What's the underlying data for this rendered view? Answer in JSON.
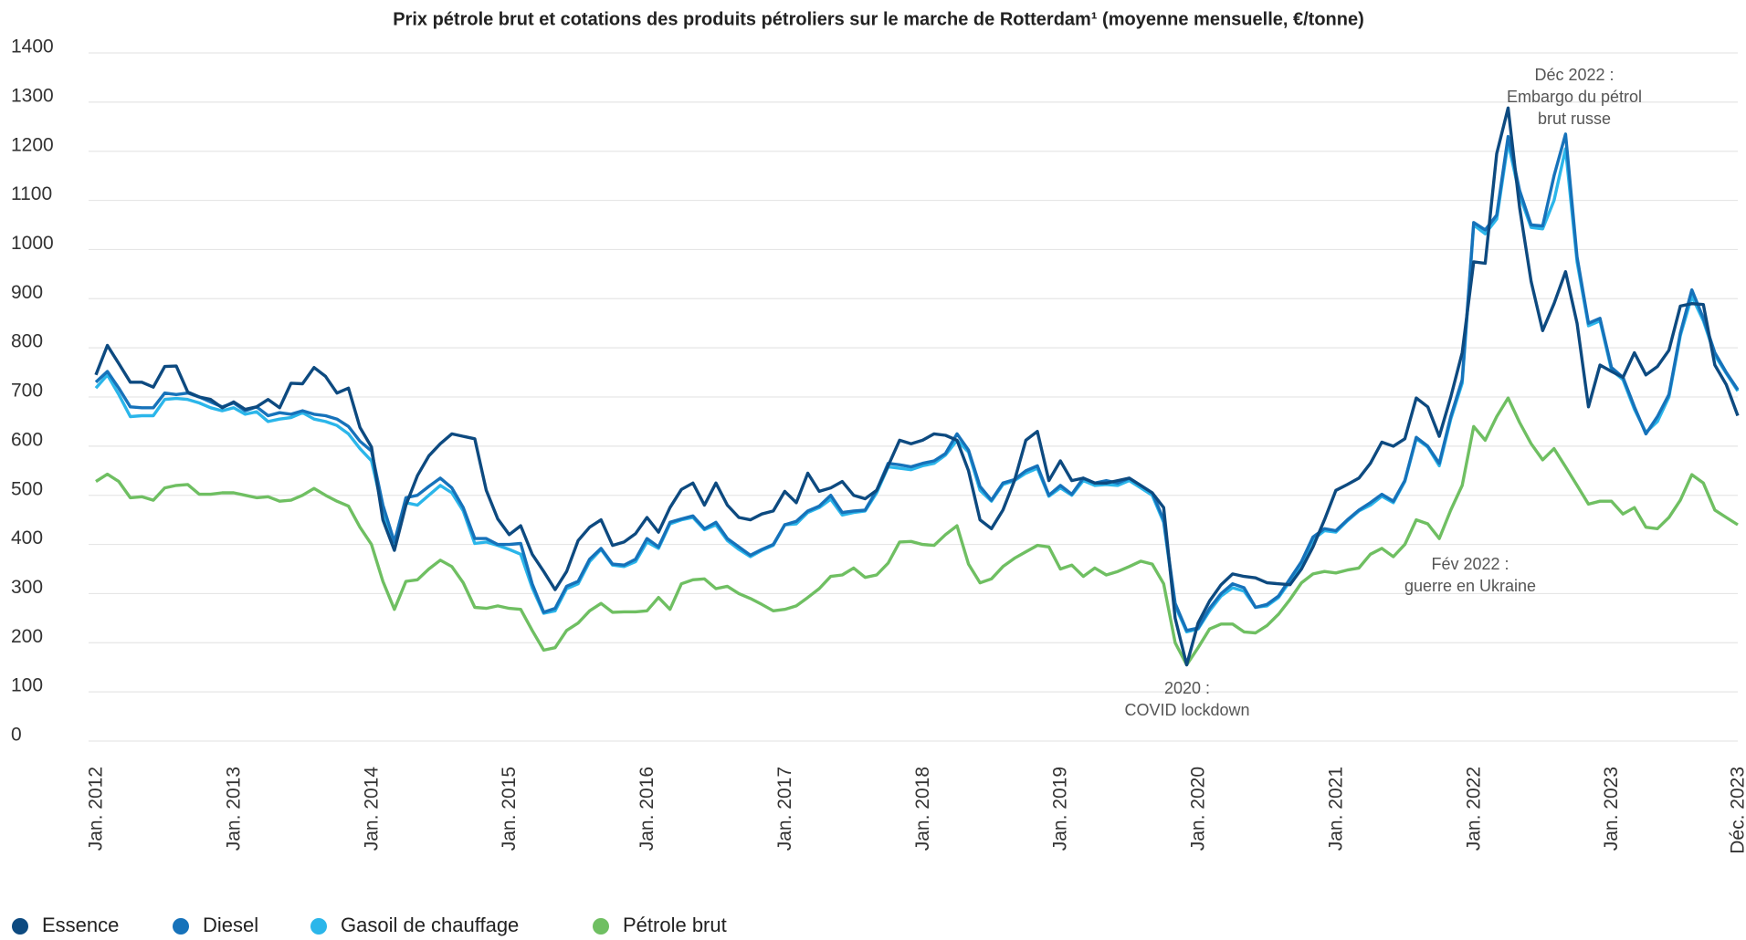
{
  "chart_data": {
    "type": "line",
    "title": "Prix pétrole brut et cotations des produits pétroliers sur le marche de Rotterdam¹ (moyenne mensuelle, €/tonne)",
    "categories": [
      "Jan. 2012",
      null,
      null,
      null,
      null,
      null,
      null,
      null,
      null,
      null,
      null,
      null,
      "Jan. 2013",
      null,
      null,
      null,
      null,
      null,
      null,
      null,
      null,
      null,
      null,
      null,
      "Jan. 2014",
      null,
      null,
      null,
      null,
      null,
      null,
      null,
      null,
      null,
      null,
      null,
      "Jan. 2015",
      null,
      null,
      null,
      null,
      null,
      null,
      null,
      null,
      null,
      null,
      null,
      "Jan. 2016",
      null,
      null,
      null,
      null,
      null,
      null,
      null,
      null,
      null,
      null,
      null,
      "Jan. 2017",
      null,
      null,
      null,
      null,
      null,
      null,
      null,
      null,
      null,
      null,
      null,
      "Jan. 2018",
      null,
      null,
      null,
      null,
      null,
      null,
      null,
      null,
      null,
      null,
      null,
      "Jan. 2019",
      null,
      null,
      null,
      null,
      null,
      null,
      null,
      null,
      null,
      null,
      null,
      "Jan. 2020",
      null,
      null,
      null,
      null,
      null,
      null,
      null,
      null,
      null,
      null,
      null,
      "Jan. 2021",
      null,
      null,
      null,
      null,
      null,
      null,
      null,
      null,
      null,
      null,
      null,
      "Jan. 2022",
      null,
      null,
      null,
      null,
      null,
      null,
      null,
      null,
      null,
      null,
      null,
      "Jan. 2023",
      null,
      null,
      null,
      null,
      null,
      null,
      null,
      null,
      null,
      null,
      "Déc. 2023"
    ],
    "series": [
      {
        "name": "Essence",
        "color": "#0d4a80",
        "values": [
          745,
          805,
          768,
          730,
          730,
          720,
          762,
          763,
          710,
          700,
          695,
          678,
          690,
          675,
          680,
          695,
          678,
          728,
          727,
          760,
          742,
          708,
          718,
          638,
          598,
          450,
          388,
          480,
          540,
          580,
          605,
          625,
          620,
          615,
          510,
          452,
          420,
          438,
          380,
          345,
          308,
          345,
          408,
          435,
          450,
          398,
          405,
          422,
          455,
          425,
          475,
          512,
          525,
          480,
          525,
          480,
          455,
          450,
          462,
          468,
          508,
          485,
          545,
          508,
          515,
          528,
          500,
          493,
          510,
          560,
          612,
          605,
          612,
          625,
          622,
          612,
          550,
          450,
          432,
          470,
          530,
          612,
          630,
          530,
          570,
          530,
          535,
          525,
          525,
          530,
          535,
          520,
          505,
          475,
          250,
          155,
          240,
          285,
          318,
          340,
          335,
          332,
          322,
          320,
          318,
          350,
          395,
          450,
          510,
          522,
          535,
          565,
          608,
          600,
          615,
          698,
          680,
          620,
          700,
          790,
          975,
          972,
          1195,
          1288,
          1085,
          935,
          835,
          890,
          955,
          850,
          680,
          765,
          752,
          740,
          790,
          745,
          762,
          795,
          885,
          890,
          888,
          765,
          725,
          662
        ]
      },
      {
        "name": "Diesel",
        "color": "#1672ba",
        "values": [
          730,
          752,
          718,
          680,
          678,
          678,
          708,
          705,
          708,
          700,
          690,
          680,
          688,
          672,
          680,
          662,
          668,
          665,
          672,
          665,
          662,
          655,
          640,
          610,
          590,
          480,
          405,
          495,
          500,
          518,
          535,
          515,
          475,
          412,
          412,
          400,
          400,
          402,
          320,
          262,
          270,
          315,
          325,
          370,
          392,
          360,
          358,
          370,
          412,
          395,
          445,
          452,
          458,
          432,
          445,
          412,
          395,
          378,
          390,
          400,
          440,
          447,
          468,
          478,
          500,
          465,
          468,
          470,
          510,
          565,
          562,
          558,
          565,
          570,
          585,
          625,
          592,
          518,
          490,
          525,
          532,
          550,
          560,
          500,
          520,
          502,
          535,
          525,
          530,
          525,
          535,
          520,
          505,
          450,
          280,
          225,
          230,
          270,
          300,
          320,
          312,
          272,
          278,
          295,
          330,
          365,
          415,
          432,
          428,
          450,
          470,
          485,
          502,
          488,
          530,
          618,
          600,
          565,
          660,
          735,
          1055,
          1040,
          1070,
          1230,
          1120,
          1050,
          1048,
          1150,
          1235,
          985,
          850,
          860,
          760,
          740,
          680,
          625,
          660,
          705,
          830,
          918,
          860,
          790,
          750,
          715
        ]
      },
      {
        "name": "Gasoil de chauffage",
        "color": "#2bb6ea",
        "values": [
          718,
          745,
          705,
          660,
          662,
          662,
          695,
          697,
          695,
          688,
          678,
          672,
          678,
          665,
          670,
          650,
          655,
          658,
          668,
          655,
          650,
          642,
          625,
          595,
          570,
          470,
          395,
          485,
          480,
          500,
          520,
          505,
          468,
          402,
          405,
          398,
          390,
          380,
          312,
          260,
          265,
          310,
          320,
          365,
          390,
          358,
          355,
          365,
          405,
          392,
          442,
          450,
          455,
          430,
          440,
          408,
          390,
          375,
          388,
          398,
          440,
          442,
          465,
          475,
          492,
          460,
          465,
          468,
          505,
          558,
          555,
          552,
          560,
          565,
          582,
          612,
          588,
          510,
          488,
          522,
          530,
          545,
          555,
          498,
          515,
          500,
          530,
          520,
          522,
          520,
          530,
          515,
          500,
          445,
          275,
          222,
          228,
          265,
          295,
          312,
          305,
          272,
          275,
          292,
          325,
          360,
          410,
          428,
          425,
          448,
          468,
          480,
          498,
          485,
          528,
          615,
          598,
          560,
          655,
          728,
          1050,
          1032,
          1062,
          1218,
          1110,
          1045,
          1042,
          1100,
          1205,
          975,
          845,
          855,
          755,
          735,
          675,
          628,
          650,
          700,
          825,
          905,
          855,
          785,
          748,
          712
        ]
      },
      {
        "name": "Pétrole brut",
        "color": "#6fbf62",
        "values": [
          528,
          543,
          528,
          495,
          497,
          490,
          515,
          520,
          522,
          502,
          502,
          505,
          505,
          500,
          495,
          497,
          488,
          490,
          500,
          514,
          500,
          488,
          478,
          435,
          400,
          325,
          268,
          325,
          328,
          350,
          368,
          355,
          322,
          272,
          270,
          275,
          270,
          268,
          225,
          185,
          190,
          225,
          240,
          265,
          280,
          262,
          263,
          263,
          265,
          292,
          268,
          320,
          328,
          330,
          310,
          315,
          300,
          290,
          278,
          265,
          268,
          275,
          292,
          310,
          335,
          338,
          352,
          333,
          338,
          362,
          405,
          406,
          400,
          398,
          420,
          438,
          360,
          322,
          330,
          355,
          372,
          385,
          398,
          395,
          350,
          358,
          335,
          352,
          338,
          345,
          355,
          366,
          360,
          320,
          200,
          155,
          190,
          228,
          238,
          238,
          222,
          220,
          235,
          258,
          288,
          322,
          340,
          345,
          342,
          348,
          352,
          380,
          392,
          375,
          400,
          450,
          442,
          412,
          470,
          520,
          640,
          612,
          660,
          698,
          648,
          605,
          572,
          595,
          558,
          520,
          482,
          488,
          488,
          462,
          475,
          435,
          432,
          455,
          490,
          542,
          525,
          470,
          455,
          440
        ]
      }
    ],
    "ylim": [
      0,
      1400
    ],
    "yticks": [
      0,
      100,
      200,
      300,
      400,
      500,
      600,
      700,
      800,
      900,
      1000,
      1100,
      1200,
      1300,
      1400
    ],
    "grid": true,
    "legend": "bottom-left",
    "annotations": [
      {
        "text": [
          "Déc 2022 :",
          "Embargo du pétrol",
          "brut russe"
        ]
      },
      {
        "text": [
          "Fév 2022 :",
          "guerre en Ukraine"
        ]
      },
      {
        "text": [
          "2020 :",
          "COVID lockdown"
        ]
      }
    ]
  }
}
